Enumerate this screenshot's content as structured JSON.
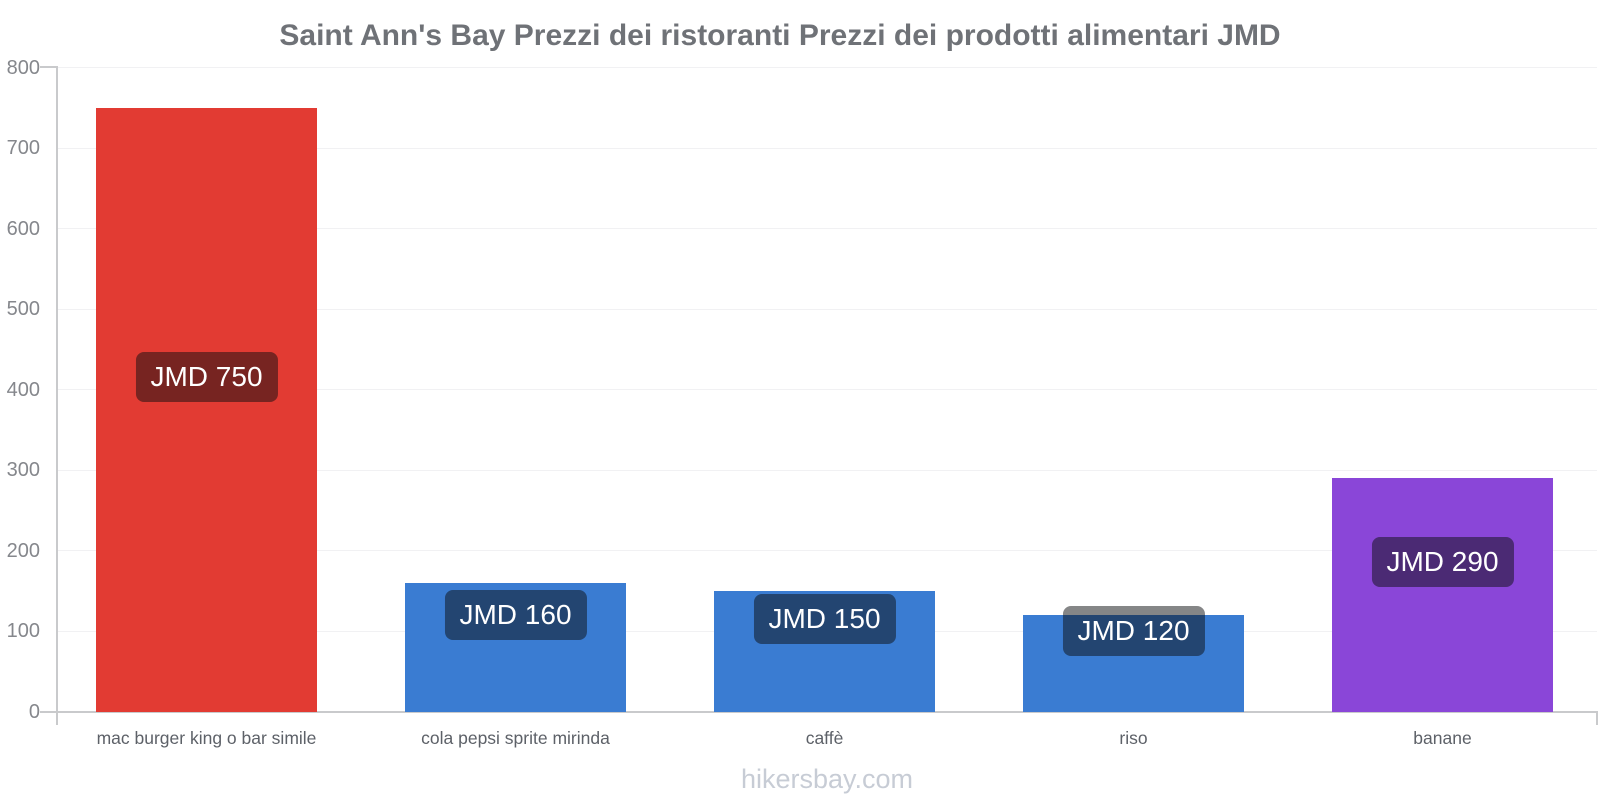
{
  "page": {
    "footer": "hikersbay.com"
  },
  "chart_data": {
    "type": "bar",
    "title": "Saint Ann's Bay Prezzi dei ristoranti Prezzi dei prodotti alimentari JMD",
    "currency": "JMD",
    "categories": [
      "mac burger king o bar simile",
      "cola pepsi sprite mirinda",
      "caffè",
      "riso",
      "banane"
    ],
    "values": [
      750,
      160,
      150,
      120,
      290
    ],
    "value_labels": [
      "JMD 750",
      "JMD 160",
      "JMD 150",
      "JMD 120",
      "JMD 290"
    ],
    "bar_colors": [
      "#e23b33",
      "#3a7cd2",
      "#3a7cd2",
      "#3a7cd2",
      "#8a46d8"
    ],
    "xlabel": "",
    "ylabel": "",
    "ylim": [
      0,
      800
    ],
    "yticks": [
      0,
      100,
      200,
      300,
      400,
      500,
      600,
      700,
      800
    ],
    "grid": "horizontal",
    "legend": "none",
    "colors": {
      "title": "#6f7277",
      "tick_label": "#85878c",
      "category_label": "#5d6168",
      "footer_text": "#c7ccd5",
      "axis": "#c9cacc",
      "grid_line": "#f1f1f3",
      "value_label_bg": "rgba(12,13,16,0.5)",
      "value_label_text": "#ffffff"
    }
  }
}
